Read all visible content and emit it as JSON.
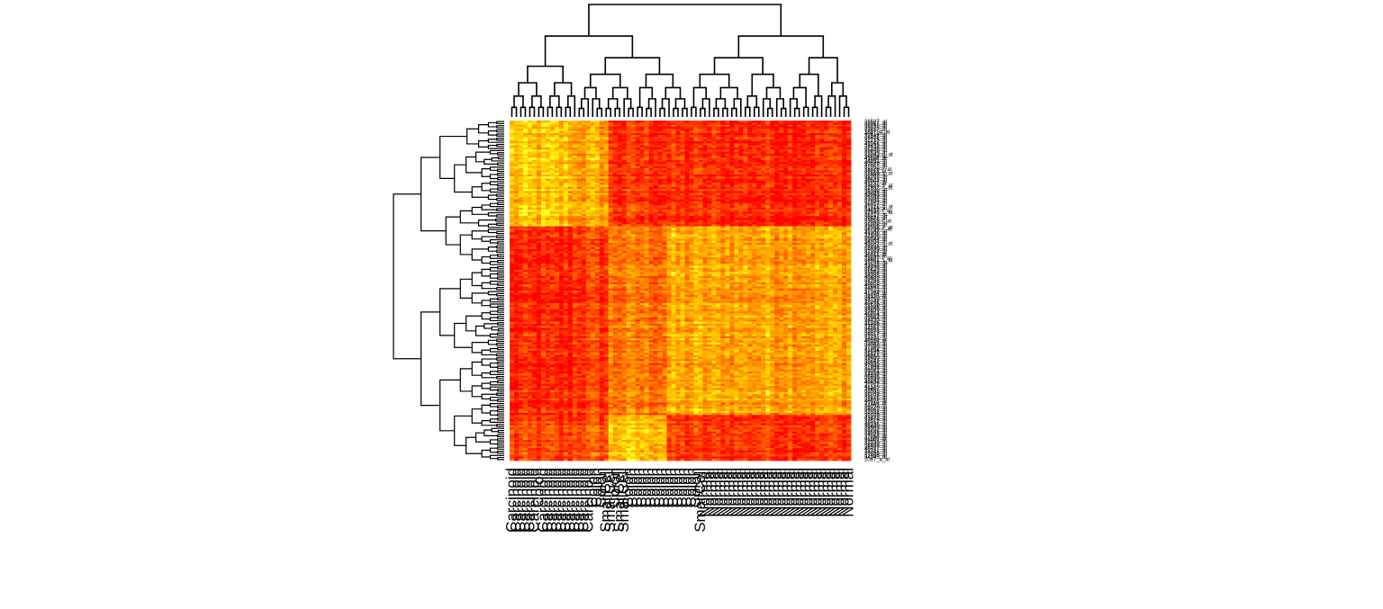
{
  "chart_data": {
    "type": "heatmap",
    "title": "",
    "xlabel": "",
    "ylabel": "",
    "grid": false,
    "legend": "none",
    "colors": {
      "low": "#ff0000",
      "mid": "#ff9a00",
      "high": "#ffff20"
    },
    "value_range": [
      0,
      1
    ],
    "column_labels": [
      "Carcinoid",
      "Carcinoid",
      "Carcinoid",
      "Carcinoid",
      "Carcinoid",
      "Carcinoid",
      "Colon",
      "Carcinoid",
      "Carcinoid",
      "Carcinoid",
      "Carcinoid",
      "Carcinoid",
      "Carcinoid",
      "Carcinoid",
      "Carcinoid",
      "Carcinoid",
      "Carcinoid",
      "Carcinoid",
      "Colon",
      "Colon",
      "Colon",
      "SmallCell",
      "SmallCell",
      "Colon",
      "SmallCell",
      "SmallCell",
      "Colon",
      "Colon",
      "Colon",
      "Colon",
      "Colon",
      "Colon",
      "Colon",
      "Colon",
      "Colon",
      "Colon",
      "Colon",
      "Colon",
      "Colon",
      "Colon",
      "Colon",
      "Colon",
      "SmallCell",
      "Normal",
      "Normal",
      "Normal",
      "Normal",
      "Normal",
      "Normal",
      "Normal",
      "Normal",
      "Normal",
      "Normal",
      "Normal",
      "Normal",
      "Normal",
      "Normal",
      "Normal",
      "Normal",
      "Normal",
      "Normal",
      "Normal",
      "Normal",
      "Normal",
      "Normal",
      "Normal",
      "Normal",
      "Normal",
      "Normal",
      "Normal",
      "Normal",
      "Normal",
      "Normal",
      "Normal",
      "Normal",
      "Normal"
    ],
    "row_labels": [
      "38587_at",
      "31517_at",
      "36792_at",
      "35832_at",
      "33412_at",
      "1887_g_at",
      "40418_at",
      "37542_at",
      "38631_at",
      "32715_at",
      "36627_at",
      "41266_at",
      "38432_at",
      "32148_at",
      "35645_at",
      "37630_at",
      "33843_g_at",
      "36834_at",
      "41158_at",
      "34991_at",
      "40696_at",
      "37027_at",
      "32052_at",
      "31829_r_at",
      "38113_at",
      "37669_s_at",
      "36569_at",
      "38755_at",
      "39631_at",
      "40907_at",
      "41137_at",
      "33128_s_at",
      "37897_s_at",
      "36780_at",
      "35366_at",
      "40841_at",
      "34760_at",
      "39394_at",
      "37004_at",
      "32542_at",
      "36917_at",
      "41722_g_at",
      "31915_at",
      "34637_f_at",
      "37149_s_at",
      "38217_at",
      "36227_at",
      "39878_at",
      "33758_f_at",
      "37958_at",
      "36908_at",
      "32588_s_at",
      "39766_r_at",
      "35147_at",
      "41209_at",
      "37406_at",
      "36495_at",
      "38044_at",
      "34804_at",
      "40282_s_at",
      "38051_at",
      "33440_at",
      "39339_at",
      "37394_at",
      "36711_at",
      "40953_at",
      "31687_f_at",
      "38691_s_at",
      "35298_at",
      "41531_at",
      "32160_at",
      "37228_at",
      "39543_at",
      "36864_at",
      "34368_at",
      "40480_at",
      "38482_at",
      "31793_at",
      "35803_at",
      "40856_at",
      "32662_at",
      "39072_at",
      "37343_at",
      "41354_at",
      "36119_at",
      "34320_at",
      "38738_at",
      "33241_at",
      "40775_at",
      "31509_at",
      "39145_at",
      "35699_at",
      "37981_at",
      "40024_at",
      "36629_at",
      "33904_at",
      "38430_at",
      "32186_at",
      "41096_at",
      "37512_at",
      "34851_at",
      "39956_at",
      "38012_at",
      "35017_at",
      "31431_at",
      "36485_at",
      "40119_at",
      "33883_at",
      "38968_at",
      "37280_at",
      "41764_at",
      "32696_at",
      "35127_at",
      "36813_at",
      "39400_at",
      "38791_at",
      "33662_at",
      "40165_at",
      "37044_at",
      "31898_at",
      "35362_at",
      "39014_at",
      "34408_at",
      "36935_at",
      "38559_at",
      "32243_at",
      "40606_at",
      "37707_at",
      "41510_at",
      "35487_at",
      "33502_at",
      "39243_at",
      "36203_at",
      "38177_at",
      "31609_at",
      "40521_at",
      "37119_at",
      "34093_at",
      "39770_at",
      "36063_at",
      "32781_at",
      "38396_at",
      "35559_at",
      "41433_at",
      "37616_at",
      "33017_at",
      "40335_at",
      "36445_at",
      "38903_at",
      "31782_at",
      "39568_at",
      "34522_at",
      "37853_at",
      "41185_at",
      "35901_at",
      "32330_at",
      "38638_at",
      "36157_at",
      "40717_at",
      "33321_at",
      "39486_at",
      "37468_at",
      "34945_at",
      "2087_s_at"
    ]
  }
}
